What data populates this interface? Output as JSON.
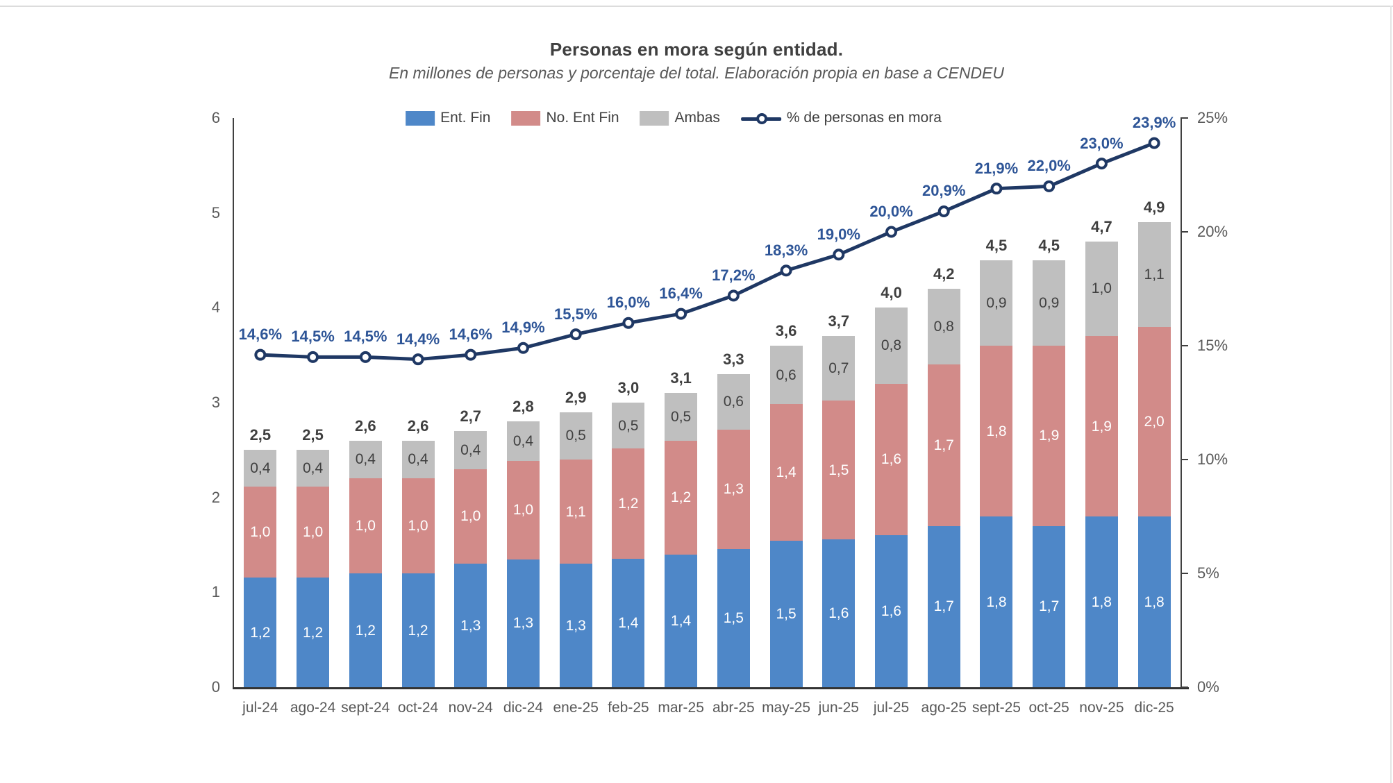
{
  "page": {
    "title": "Personas en mora según entidad.",
    "subtitle": "En millones de personas y porcentaje del total. Elaboración propia en base a CENDEU"
  },
  "legend": [
    {
      "label": "Ent. Fin",
      "color": "#4E87C8",
      "type": "swatch"
    },
    {
      "label": "No. Ent Fin",
      "color": "#D28B89",
      "type": "swatch"
    },
    {
      "label": "Ambas",
      "color": "#BFBFBF",
      "type": "swatch"
    },
    {
      "label": "% de personas en mora",
      "color": "#1F3864",
      "type": "line-marker"
    }
  ],
  "axes": {
    "left": {
      "ticks": [
        "0",
        "1",
        "2",
        "3",
        "4",
        "5",
        "6"
      ],
      "max": 6
    },
    "right": {
      "ticks": [
        "0%",
        "5%",
        "10%",
        "15%",
        "20%",
        "25%"
      ],
      "max": 25
    }
  },
  "colors": {
    "ent_fin": "#4E87C8",
    "no_ent_fin": "#D28B89",
    "ambas": "#BFBFBF",
    "line": "#1F3864",
    "pct_labels": "#2E5597",
    "total_labels": "#3F3F3F",
    "axis_text": "#595959"
  },
  "chart_data": {
    "type": "bar",
    "subtype": "stacked-bars-with-percentage-line",
    "title": "Personas en mora según entidad.",
    "subtitle": "En millones de personas y porcentaje del total. Elaboración propia en base a CENDEU",
    "categories": [
      "jul-24",
      "ago-24",
      "sept-24",
      "oct-24",
      "nov-24",
      "dic-24",
      "ene-25",
      "feb-25",
      "mar-25",
      "abr-25",
      "may-25",
      "jun-25",
      "jul-25",
      "ago-25",
      "sept-25",
      "oct-25",
      "nov-25",
      "dic-25"
    ],
    "series": [
      {
        "name": "Ent. Fin",
        "color": "#4E87C8",
        "label_color": "#FFFFFF",
        "values": [
          1.2,
          1.2,
          1.2,
          1.2,
          1.3,
          1.3,
          1.3,
          1.4,
          1.4,
          1.5,
          1.5,
          1.6,
          1.6,
          1.7,
          1.8,
          1.7,
          1.8,
          1.8
        ]
      },
      {
        "name": "No. Ent Fin",
        "color": "#D28B89",
        "label_color": "#FFFFFF",
        "values": [
          1.0,
          1.0,
          1.0,
          1.0,
          1.0,
          1.0,
          1.1,
          1.2,
          1.2,
          1.3,
          1.4,
          1.5,
          1.6,
          1.7,
          1.8,
          1.9,
          1.9,
          2.0
        ]
      },
      {
        "name": "Ambas",
        "color": "#BFBFBF",
        "label_color": "#404040",
        "values": [
          0.4,
          0.4,
          0.4,
          0.4,
          0.4,
          0.4,
          0.5,
          0.5,
          0.5,
          0.6,
          0.6,
          0.7,
          0.8,
          0.8,
          0.9,
          0.9,
          1.0,
          1.1
        ]
      }
    ],
    "totals": [
      2.5,
      2.5,
      2.6,
      2.6,
      2.7,
      2.8,
      2.9,
      3.0,
      3.1,
      3.3,
      3.6,
      3.7,
      4.0,
      4.2,
      4.5,
      4.5,
      4.7,
      4.9
    ],
    "line_series": {
      "name": "% de personas en mora",
      "color": "#1F3864",
      "label_color": "#2E5597",
      "axis": "right",
      "values": [
        14.6,
        14.5,
        14.5,
        14.4,
        14.6,
        14.9,
        15.5,
        16.0,
        16.4,
        17.2,
        18.3,
        19.0,
        20.0,
        20.9,
        21.9,
        22.0,
        23.0,
        23.9
      ]
    },
    "ylim_left": [
      0,
      6
    ],
    "ylim_right": [
      0,
      25
    ],
    "decimal_separator": ",",
    "grid": false,
    "legend_position": "top-center"
  }
}
